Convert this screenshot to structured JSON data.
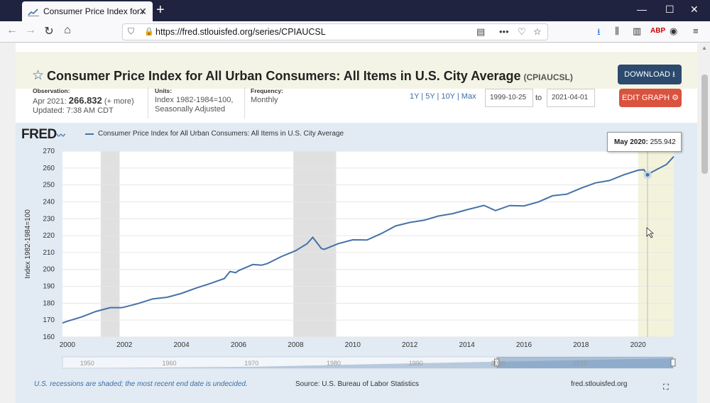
{
  "browser": {
    "tab_title": "Consumer Price Index for All Urban C",
    "url": "https://fred.stlouisfed.org/series/CPIAUCSL"
  },
  "series": {
    "title": "Consumer Price Index for All Urban Consumers: All Items in U.S. City Average",
    "id": "(CPIAUCSL)",
    "download_label": "DOWNLOAD",
    "edit_label": "EDIT GRAPH",
    "observation_label": "Observation:",
    "observation_date": "Apr 2021:",
    "observation_value": "266.832",
    "observation_more": "(+ more)",
    "updated": "Updated: 7:38 AM CDT",
    "units_label": "Units:",
    "units_line1": "Index 1982-1984=100,",
    "units_line2": "Seasonally Adjusted",
    "frequency_label": "Frequency:",
    "frequency": "Monthly",
    "range_links": "1Y | 5Y | 10Y | Max",
    "date_from": "1999-10-25",
    "date_to_label": "to",
    "date_to": "2021-04-01"
  },
  "graph": {
    "logo": "FRED",
    "legend": "Consumer Price Index for All Urban Consumers: All Items in U.S. City Average",
    "tooltip_date": "May 2020:",
    "tooltip_value": "255.942",
    "recession_note": "U.S. recessions are shaded; the most recent end date is undecided.",
    "source": "Source: U.S. Bureau of Labor Statistics",
    "site": "fred.stlouisfed.org",
    "navigator_years": [
      "1950",
      "1960",
      "1970",
      "1980",
      "1990",
      "2000",
      "2010"
    ]
  },
  "colors": {
    "line": "#4572a7",
    "recession": "#e0e0e0",
    "highlight": "#f3f3dc",
    "accent_red": "#d9533f",
    "accent_navy": "#2c4a6e"
  },
  "chart_data": {
    "type": "line",
    "ylabel": "Index 1982-1984=100",
    "xlim": [
      1999.83,
      2021.25
    ],
    "ylim": [
      160,
      270
    ],
    "yticks": [
      160,
      170,
      180,
      190,
      200,
      210,
      220,
      230,
      240,
      250,
      260,
      270
    ],
    "xticks": [
      2000,
      2002,
      2004,
      2006,
      2008,
      2010,
      2012,
      2014,
      2016,
      2018,
      2020
    ],
    "recessions": [
      [
        2001.17,
        2001.83
      ],
      [
        2007.92,
        2009.42
      ]
    ],
    "series": [
      {
        "x": [
          1999.83,
          2000.0,
          2000.5,
          2001.0,
          2001.5,
          2001.9,
          2002.0,
          2002.5,
          2003.0,
          2003.5,
          2004.0,
          2004.5,
          2005.0,
          2005.5,
          2005.7,
          2005.9,
          2006.0,
          2006.5,
          2006.8,
          2007.0,
          2007.5,
          2008.0,
          2008.4,
          2008.6,
          2008.9,
          2009.0,
          2009.5,
          2010.0,
          2010.5,
          2011.0,
          2011.5,
          2012.0,
          2012.5,
          2013.0,
          2013.5,
          2014.0,
          2014.6,
          2015.0,
          2015.5,
          2016.0,
          2016.5,
          2017.0,
          2017.5,
          2018.0,
          2018.5,
          2019.0,
          2019.5,
          2020.0,
          2020.2,
          2020.33,
          2020.5,
          2021.0,
          2021.25
        ],
        "y": [
          168.3,
          169.3,
          171.9,
          175.1,
          177.4,
          177.4,
          177.7,
          179.9,
          182.6,
          183.5,
          185.8,
          188.9,
          191.6,
          194.6,
          198.8,
          198.1,
          199.3,
          202.9,
          202.5,
          203.4,
          207.6,
          211.1,
          215.2,
          219.0,
          212.4,
          211.9,
          215.3,
          217.5,
          217.4,
          221.2,
          225.7,
          227.8,
          229.1,
          231.6,
          233.0,
          235.3,
          237.9,
          234.8,
          237.8,
          237.6,
          239.9,
          243.6,
          244.5,
          248.1,
          251.2,
          252.6,
          256.0,
          258.7,
          259.0,
          255.9,
          257.8,
          262.2,
          266.8
        ]
      }
    ],
    "highlight": {
      "x": 2020.33,
      "y": 255.942,
      "label": "May 2020"
    }
  }
}
